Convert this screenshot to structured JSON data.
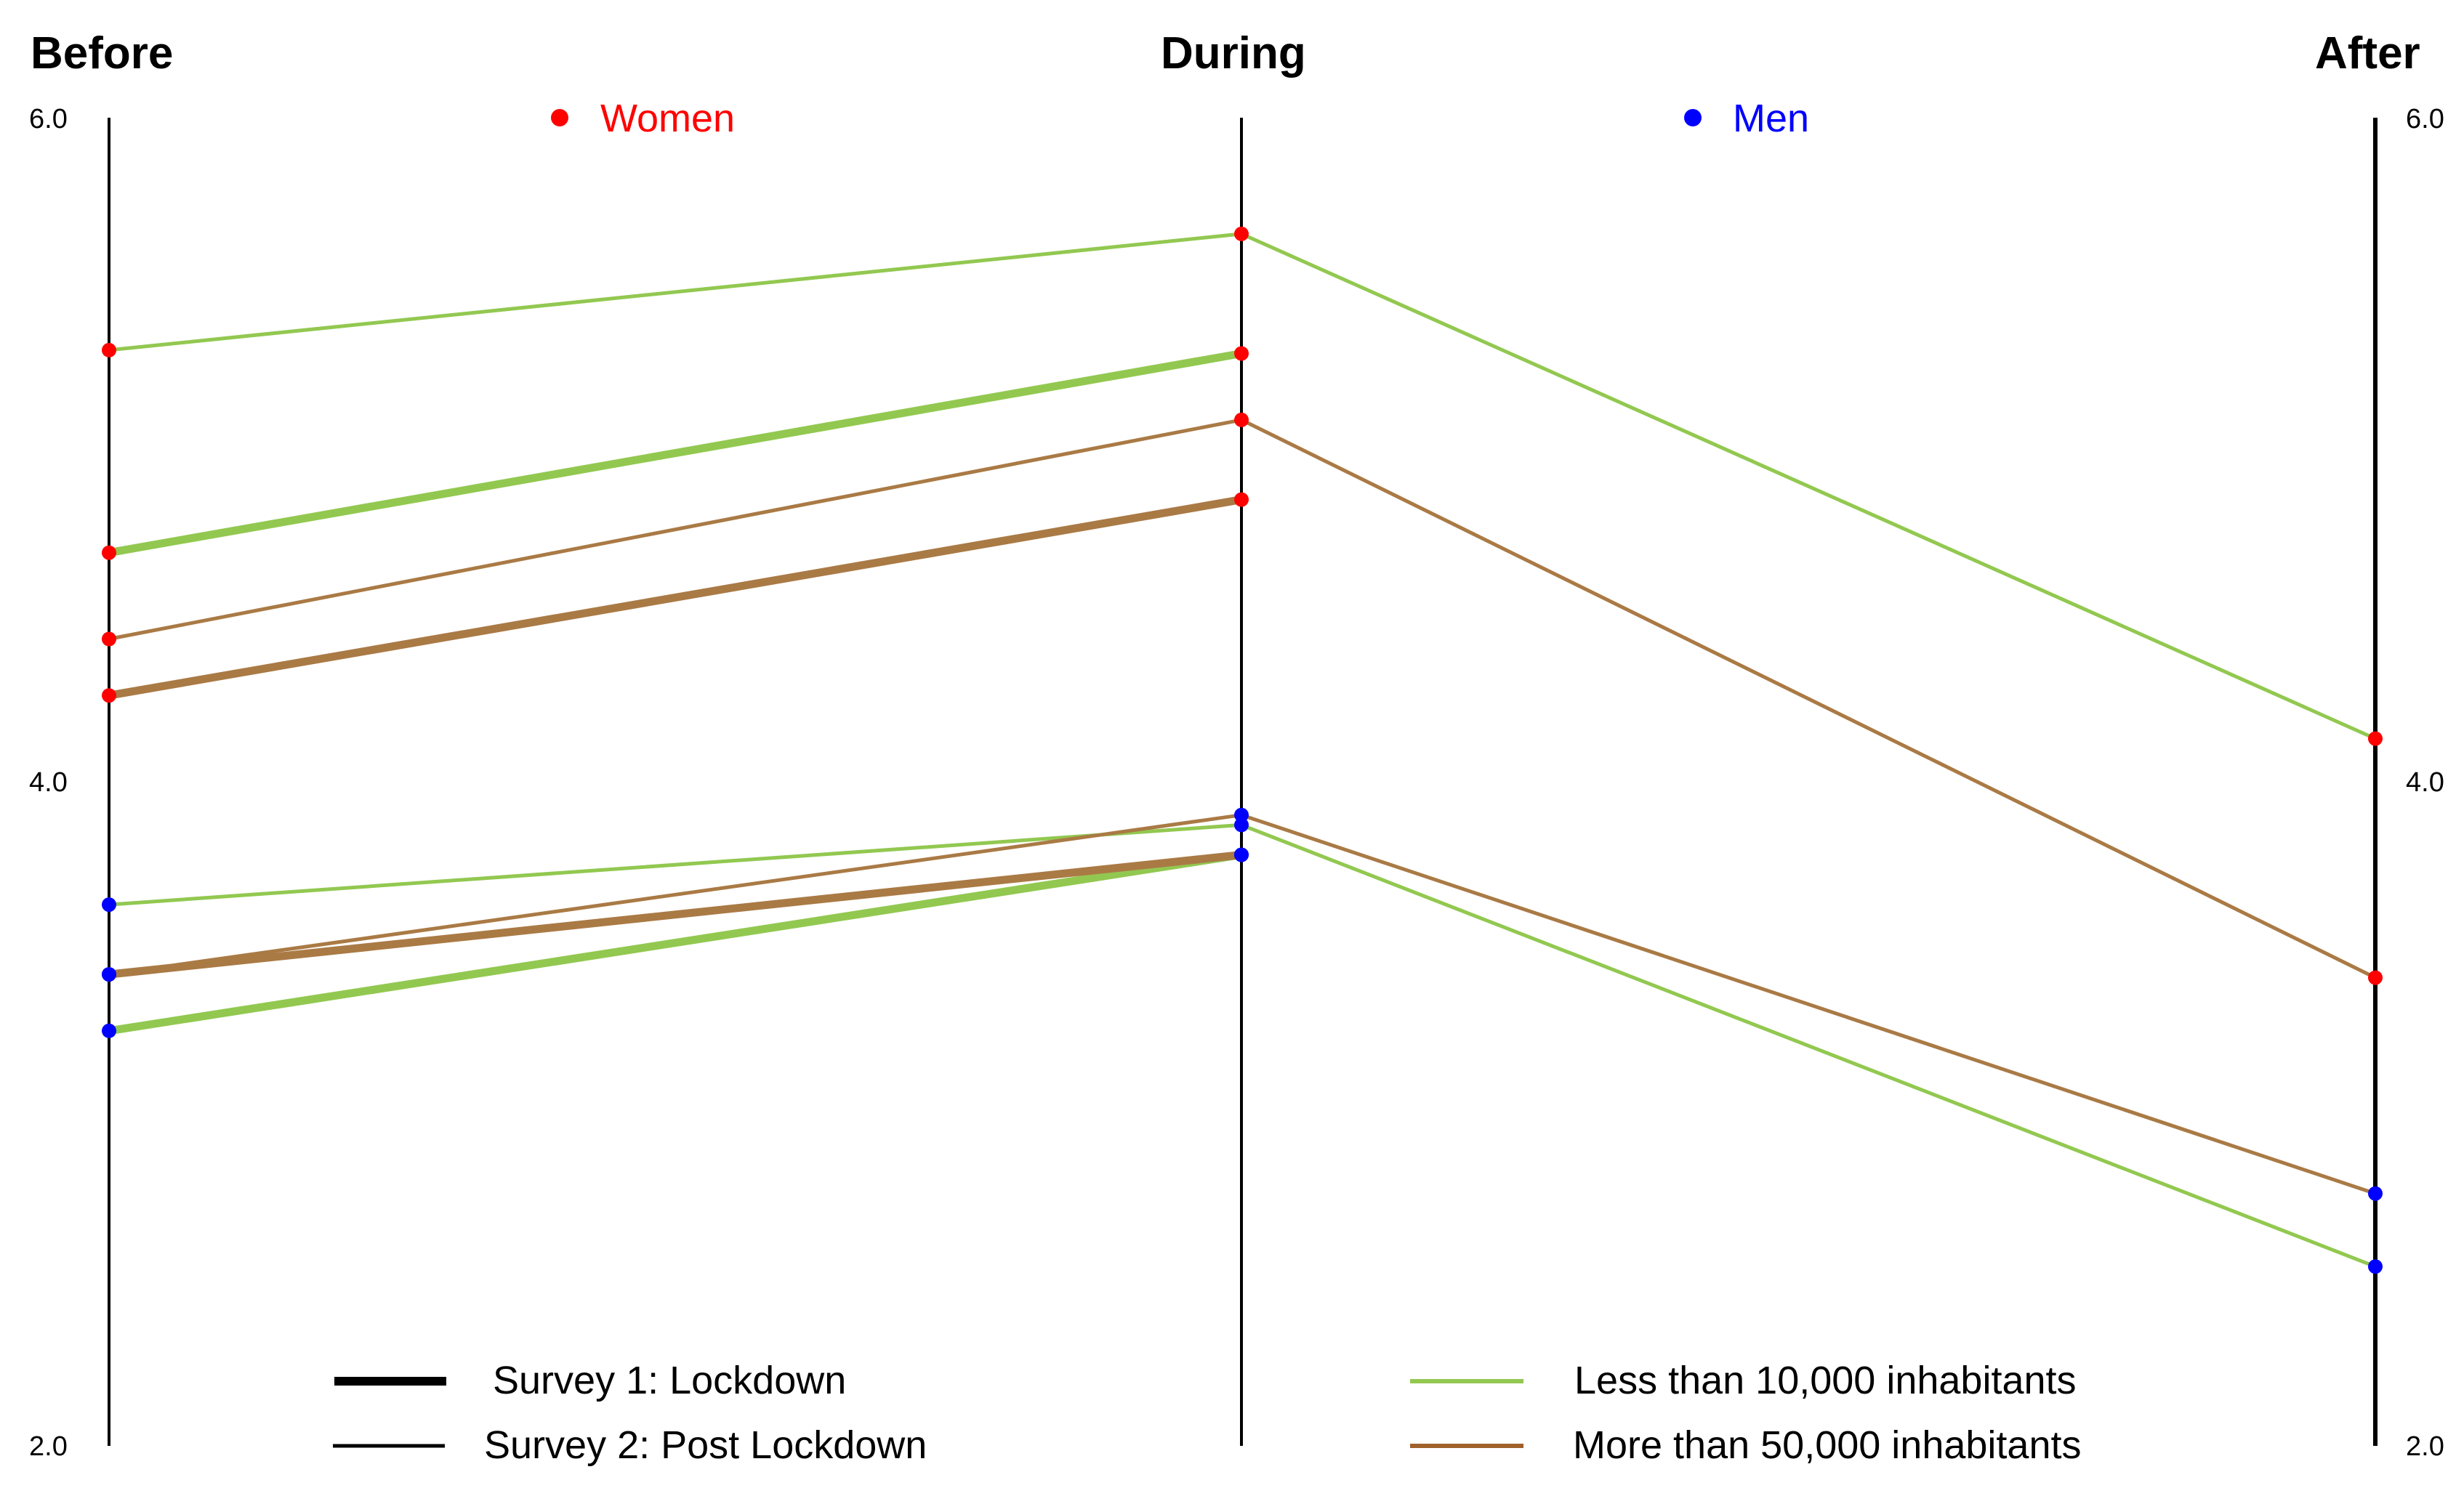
{
  "chart_data": {
    "type": "line",
    "subtype": "parallel-coordinates",
    "axes": [
      "Before",
      "During",
      "After"
    ],
    "ylim": [
      2.0,
      6.0
    ],
    "ticks": [
      "6.0",
      "4.0",
      "2.0"
    ],
    "groups": {
      "women": {
        "label": "Women",
        "color": "#ff0000"
      },
      "men": {
        "label": "Men",
        "color": "#0000ff"
      }
    },
    "colors": {
      "less_10k": "#92c850",
      "more_50k": "#aa7a45",
      "axis": "#000000"
    },
    "legend": {
      "survey1": "Survey 1: Lockdown",
      "survey2": "Survey 2: Post Lockdown",
      "less_10k": "Less than 10,000 inhabitants",
      "more_50k": "More than 50,000 inhabitants"
    },
    "series": [
      {
        "name": "Women - Less than 10,000 inhabitants - Survey 2",
        "group": "women",
        "population": "less_10k",
        "survey": "post",
        "values": [
          5.3,
          5.65,
          4.13
        ]
      },
      {
        "name": "Women - Less than 10,000 inhabitants - Survey 1",
        "group": "women",
        "population": "less_10k",
        "survey": "lockdown",
        "values": [
          4.69,
          5.29
        ]
      },
      {
        "name": "Women - More than 50,000 inhabitants - Survey 2",
        "group": "women",
        "population": "more_50k",
        "survey": "post",
        "values": [
          4.43,
          5.09,
          3.41
        ]
      },
      {
        "name": "Women - More than 50,000 inhabitants - Survey 1",
        "group": "women",
        "population": "more_50k",
        "survey": "lockdown",
        "values": [
          4.26,
          4.85
        ]
      },
      {
        "name": "Men - Less than 10,000 inhabitants - Survey 2",
        "group": "men",
        "population": "less_10k",
        "survey": "post",
        "values": [
          3.63,
          3.87,
          2.54
        ]
      },
      {
        "name": "Men - Less than 10,000 inhabitants - Survey 1",
        "group": "men",
        "population": "less_10k",
        "survey": "lockdown",
        "values": [
          3.25,
          3.78
        ]
      },
      {
        "name": "Men - More than 50,000 inhabitants - Survey 2",
        "group": "men",
        "population": "more_50k",
        "survey": "post",
        "values": [
          3.42,
          3.9,
          2.76
        ]
      },
      {
        "name": "Men - More than 50,000 inhabitants - Survey 1",
        "group": "men",
        "population": "more_50k",
        "survey": "lockdown",
        "values": [
          3.42,
          3.78
        ]
      }
    ]
  }
}
